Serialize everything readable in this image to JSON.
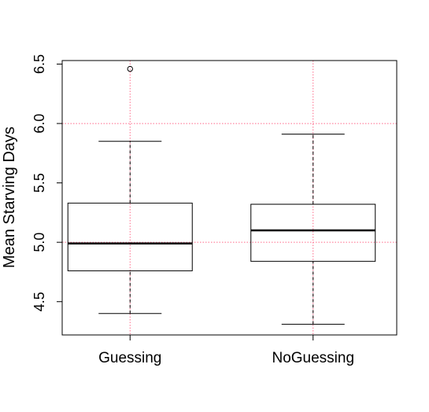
{
  "chart_data": {
    "type": "box",
    "title": "",
    "xlabel": "",
    "ylabel": "Mean Starving Days",
    "ylim": [
      4.22,
      6.53
    ],
    "yticks": [
      "4.5",
      "5.0",
      "5.5",
      "6.0",
      "6.5"
    ],
    "categories": [
      "Guessing",
      "NoGuessing"
    ],
    "boxes": [
      {
        "category": "Guessing",
        "whisker_low": 4.4,
        "q1": 4.76,
        "median": 4.99,
        "q3": 5.33,
        "whisker_high": 5.85,
        "outliers": [
          6.46
        ]
      },
      {
        "category": "NoGuessing",
        "whisker_low": 4.31,
        "q1": 4.84,
        "median": 5.1,
        "q3": 5.32,
        "whisker_high": 5.91,
        "outliers": []
      }
    ],
    "grid": {
      "horizontal": [
        5.0,
        6.0
      ],
      "vertical_at_categories": true,
      "style": "dotted",
      "color": "#ff6a8a"
    },
    "colors": {
      "box_stroke": "#000000",
      "median": "#000000",
      "grid": "#ff6a8a"
    }
  }
}
